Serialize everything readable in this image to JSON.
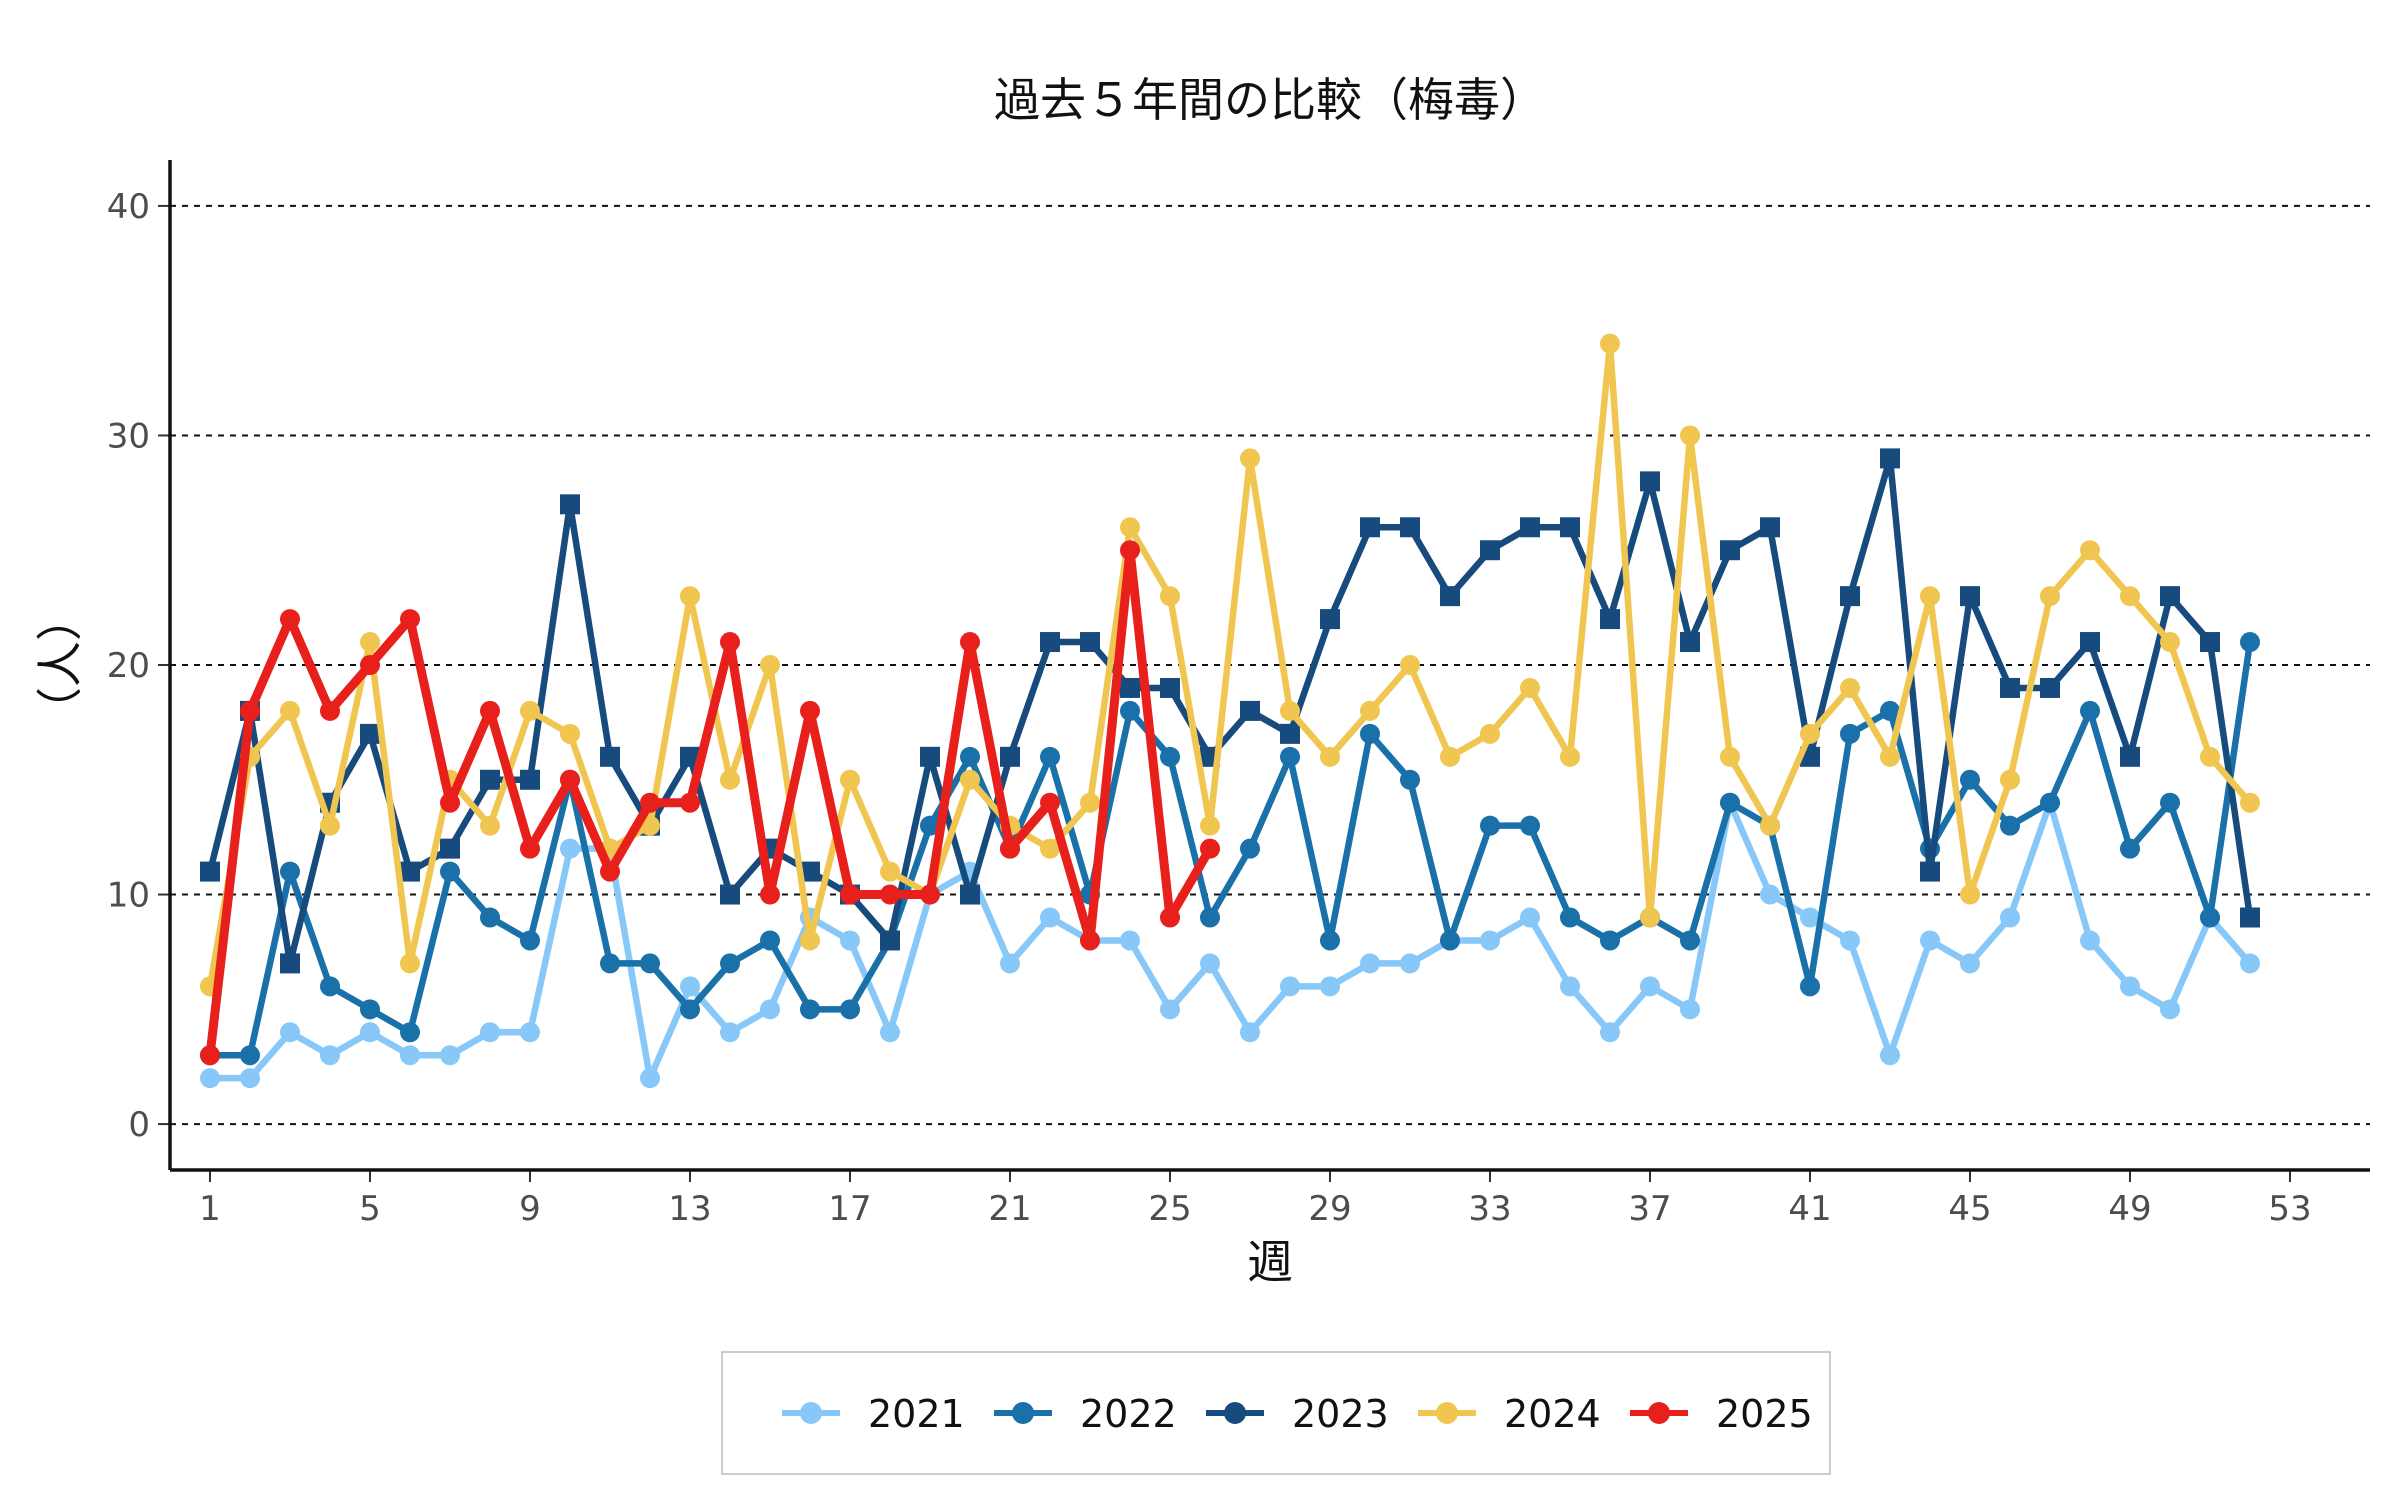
{
  "chart_data": {
    "type": "line",
    "title": "過去５年間の比較（梅毒）",
    "xlabel": "週",
    "ylabel": "（人）",
    "xlim": [
      0,
      55
    ],
    "ylim": [
      -2,
      42
    ],
    "x_ticks": [
      1,
      5,
      9,
      13,
      17,
      21,
      25,
      29,
      33,
      37,
      41,
      45,
      49,
      53
    ],
    "y_ticks": [
      0,
      10,
      20,
      30,
      40
    ],
    "grid": "horizontal dashed",
    "legend_position": "bottom",
    "series": [
      {
        "name": "2021",
        "color": "#87c8f8",
        "marker": "circle",
        "x": [
          1,
          2,
          3,
          4,
          5,
          6,
          7,
          8,
          9,
          10,
          11,
          12,
          13,
          14,
          15,
          16,
          17,
          18,
          19,
          20,
          21,
          22,
          23,
          24,
          25,
          26,
          27,
          28,
          29,
          30,
          31,
          32,
          33,
          34,
          35,
          36,
          37,
          38,
          39,
          40,
          41,
          42,
          43,
          44,
          45,
          46,
          47,
          48,
          49,
          50,
          51,
          52
        ],
        "values": [
          2,
          2,
          4,
          3,
          4,
          3,
          3,
          4,
          4,
          12,
          12,
          2,
          6,
          4,
          5,
          9,
          8,
          4,
          10,
          11,
          7,
          9,
          8,
          8,
          5,
          7,
          4,
          6,
          6,
          7,
          7,
          8,
          8,
          9,
          6,
          4,
          6,
          5,
          14,
          10,
          9,
          8,
          3,
          8,
          7,
          9,
          14,
          8,
          6,
          5,
          9,
          7
        ]
      },
      {
        "name": "2022",
        "color": "#1a70a8",
        "marker": "circle",
        "x": [
          1,
          2,
          3,
          4,
          5,
          6,
          7,
          8,
          9,
          10,
          11,
          12,
          13,
          14,
          15,
          16,
          17,
          18,
          19,
          20,
          21,
          22,
          23,
          24,
          25,
          26,
          27,
          28,
          29,
          30,
          31,
          32,
          33,
          34,
          35,
          36,
          37,
          38,
          39,
          40,
          41,
          42,
          43,
          44,
          45,
          46,
          47,
          48,
          49,
          50,
          51,
          52
        ],
        "values": [
          3,
          3,
          11,
          6,
          5,
          4,
          11,
          9,
          8,
          15,
          7,
          7,
          5,
          7,
          8,
          5,
          5,
          8,
          13,
          16,
          12,
          16,
          10,
          18,
          16,
          9,
          12,
          16,
          8,
          17,
          15,
          8,
          13,
          13,
          9,
          8,
          9,
          8,
          14,
          13,
          6,
          17,
          18,
          12,
          15,
          13,
          14,
          18,
          12,
          14,
          9,
          21
        ]
      },
      {
        "name": "2023",
        "color": "#174b7d",
        "marker": "square",
        "x": [
          1,
          2,
          3,
          4,
          5,
          6,
          7,
          8,
          9,
          10,
          11,
          12,
          13,
          14,
          15,
          16,
          17,
          18,
          19,
          20,
          21,
          22,
          23,
          24,
          25,
          26,
          27,
          28,
          29,
          30,
          31,
          32,
          33,
          34,
          35,
          36,
          37,
          38,
          39,
          40,
          41,
          42,
          43,
          44,
          45,
          46,
          47,
          48,
          49,
          50,
          51,
          52
        ],
        "values": [
          11,
          18,
          7,
          14,
          17,
          11,
          12,
          15,
          15,
          27,
          16,
          13,
          16,
          10,
          12,
          11,
          10,
          8,
          16,
          10,
          16,
          21,
          21,
          19,
          19,
          16,
          18,
          17,
          22,
          26,
          26,
          23,
          25,
          26,
          26,
          22,
          28,
          21,
          25,
          26,
          16,
          23,
          29,
          11,
          23,
          19,
          19,
          21,
          16,
          23,
          21,
          9
        ]
      },
      {
        "name": "2024",
        "color": "#f0c550",
        "marker": "circle",
        "x": [
          1,
          2,
          3,
          4,
          5,
          6,
          7,
          8,
          9,
          10,
          11,
          12,
          13,
          14,
          15,
          16,
          17,
          18,
          19,
          20,
          21,
          22,
          23,
          24,
          25,
          26,
          27,
          28,
          29,
          30,
          31,
          32,
          33,
          34,
          35,
          36,
          37,
          38,
          39,
          40,
          41,
          42,
          43,
          44,
          45,
          46,
          47,
          48,
          49,
          50,
          51,
          52
        ],
        "values": [
          6,
          16,
          18,
          13,
          21,
          7,
          15,
          13,
          18,
          17,
          12,
          13,
          23,
          15,
          20,
          8,
          15,
          11,
          10,
          15,
          13,
          12,
          14,
          26,
          23,
          13,
          29,
          18,
          16,
          18,
          20,
          16,
          17,
          19,
          16,
          34,
          9,
          30,
          16,
          13,
          17,
          19,
          16,
          23,
          10,
          15,
          23,
          25,
          23,
          21,
          16,
          14
        ]
      },
      {
        "name": "2025",
        "color": "#e8201c",
        "marker": "circle",
        "x": [
          1,
          2,
          3,
          4,
          5,
          6,
          7,
          8,
          9,
          10,
          11,
          12,
          13,
          14,
          15,
          16,
          17,
          18,
          19,
          20,
          21,
          22,
          23,
          24,
          25,
          26
        ],
        "values": [
          3,
          18,
          22,
          18,
          20,
          22,
          14,
          18,
          12,
          15,
          11,
          14,
          14,
          21,
          10,
          18,
          10,
          10,
          10,
          21,
          12,
          14,
          8,
          25,
          9,
          12
        ]
      }
    ]
  }
}
